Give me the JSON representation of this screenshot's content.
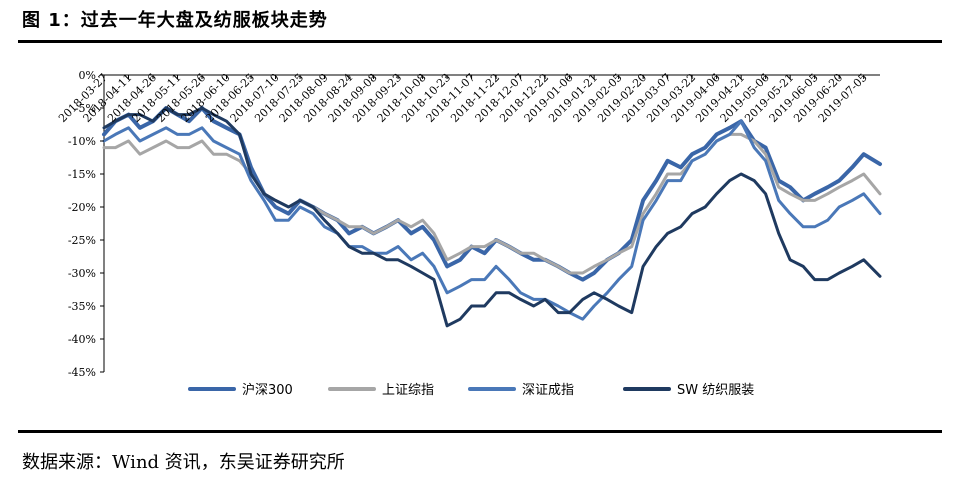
{
  "figure_title": "图 1：过去一年大盘及纺服板块走势",
  "source_note": "数据来源：Wind 资讯，东吴证券研究所",
  "chart_data": {
    "type": "line",
    "title": "",
    "xlabel": "",
    "ylabel": "",
    "y_tick_labels": [
      "0%",
      "-5%",
      "-10%",
      "-15%",
      "-20%",
      "-25%",
      "-30%",
      "-35%",
      "-40%",
      "-45%"
    ],
    "ylim": [
      -45,
      0
    ],
    "x_tick_labels": [
      "2018-03-27",
      "2018-04-11",
      "2018-04-26",
      "2018-05-11",
      "2018-05-26",
      "2018-06-10",
      "2018-06-25",
      "2018-07-10",
      "2018-07-25",
      "2018-08-09",
      "2018-08-24",
      "2018-09-08",
      "2018-09-23",
      "2018-10-08",
      "2018-10-23",
      "2018-11-07",
      "2018-11-22",
      "2018-12-07",
      "2018-12-22",
      "2019-01-06",
      "2019-01-21",
      "2019-02-05",
      "2019-02-20",
      "2019-03-07",
      "2019-03-22",
      "2019-04-06",
      "2019-04-21",
      "2019-05-06",
      "2019-05-21",
      "2019-06-05",
      "2019-06-20",
      "2019-07-05"
    ],
    "x_start": "2018-03-27",
    "x_end": "2019-07-15",
    "legend_position": "bottom",
    "grid": false,
    "series": [
      {
        "name": "沪深300",
        "color": "#3a66a8",
        "width": 4,
        "x": [
          "2018-03-27",
          "2018-04-03",
          "2018-04-11",
          "2018-04-18",
          "2018-04-26",
          "2018-05-04",
          "2018-05-11",
          "2018-05-18",
          "2018-05-26",
          "2018-06-02",
          "2018-06-10",
          "2018-06-18",
          "2018-06-25",
          "2018-07-03",
          "2018-07-10",
          "2018-07-18",
          "2018-07-25",
          "2018-08-02",
          "2018-08-09",
          "2018-08-17",
          "2018-08-24",
          "2018-09-01",
          "2018-09-08",
          "2018-09-16",
          "2018-09-23",
          "2018-10-01",
          "2018-10-08",
          "2018-10-15",
          "2018-10-23",
          "2018-10-31",
          "2018-11-07",
          "2018-11-15",
          "2018-11-22",
          "2018-11-30",
          "2018-12-07",
          "2018-12-15",
          "2018-12-22",
          "2018-12-30",
          "2019-01-06",
          "2019-01-14",
          "2019-01-21",
          "2019-01-29",
          "2019-02-05",
          "2019-02-13",
          "2019-02-20",
          "2019-02-28",
          "2019-03-07",
          "2019-03-15",
          "2019-03-22",
          "2019-03-30",
          "2019-04-06",
          "2019-04-14",
          "2019-04-21",
          "2019-04-29",
          "2019-05-06",
          "2019-05-14",
          "2019-05-21",
          "2019-05-29",
          "2019-06-05",
          "2019-06-13",
          "2019-06-20",
          "2019-06-28",
          "2019-07-05",
          "2019-07-15"
        ],
        "y": [
          -9,
          -7,
          -6,
          -8,
          -7,
          -5,
          -6,
          -7,
          -5,
          -7,
          -8,
          -9,
          -14,
          -18,
          -20,
          -21,
          -19,
          -20,
          -21,
          -22,
          -24,
          -23,
          -24,
          -23,
          -22,
          -24,
          -23,
          -25,
          -29,
          -28,
          -26,
          -27,
          -25,
          -26,
          -27,
          -28,
          -28,
          -29,
          -30,
          -31,
          -30,
          -28,
          -27,
          -25,
          -19,
          -16,
          -13,
          -14,
          -12,
          -11,
          -9,
          -8,
          -7,
          -10,
          -11,
          -16,
          -17,
          -19,
          -18,
          -17,
          -16,
          -14,
          -12,
          -13.5
        ]
      },
      {
        "name": "上证综指",
        "color": "#a6a6a6",
        "width": 3,
        "x": [
          "2018-03-27",
          "2018-04-03",
          "2018-04-11",
          "2018-04-18",
          "2018-04-26",
          "2018-05-04",
          "2018-05-11",
          "2018-05-18",
          "2018-05-26",
          "2018-06-02",
          "2018-06-10",
          "2018-06-18",
          "2018-06-25",
          "2018-07-03",
          "2018-07-10",
          "2018-07-18",
          "2018-07-25",
          "2018-08-02",
          "2018-08-09",
          "2018-08-17",
          "2018-08-24",
          "2018-09-01",
          "2018-09-08",
          "2018-09-16",
          "2018-09-23",
          "2018-10-01",
          "2018-10-08",
          "2018-10-15",
          "2018-10-23",
          "2018-10-31",
          "2018-11-07",
          "2018-11-15",
          "2018-11-22",
          "2018-11-30",
          "2018-12-07",
          "2018-12-15",
          "2018-12-22",
          "2018-12-30",
          "2019-01-06",
          "2019-01-14",
          "2019-01-21",
          "2019-01-29",
          "2019-02-05",
          "2019-02-13",
          "2019-02-20",
          "2019-02-28",
          "2019-03-07",
          "2019-03-15",
          "2019-03-22",
          "2019-03-30",
          "2019-04-06",
          "2019-04-14",
          "2019-04-21",
          "2019-04-29",
          "2019-05-06",
          "2019-05-14",
          "2019-05-21",
          "2019-05-29",
          "2019-06-05",
          "2019-06-13",
          "2019-06-20",
          "2019-06-28",
          "2019-07-05",
          "2019-07-15"
        ],
        "y": [
          -11,
          -11,
          -10,
          -12,
          -11,
          -10,
          -11,
          -11,
          -10,
          -12,
          -12,
          -13,
          -15,
          -18,
          -19,
          -20,
          -19,
          -20,
          -21,
          -22,
          -23,
          -23,
          -24,
          -23,
          -22,
          -23,
          -22,
          -24,
          -28,
          -27,
          -26,
          -26,
          -25,
          -26,
          -27,
          -27,
          -28,
          -29,
          -30,
          -30,
          -29,
          -28,
          -27,
          -26,
          -21,
          -18,
          -15,
          -15,
          -13,
          -12,
          -10,
          -9,
          -9,
          -10,
          -12,
          -17,
          -18,
          -19,
          -19,
          -18,
          -17,
          -16,
          -15,
          -18
        ]
      },
      {
        "name": "深证成指",
        "color": "#4a78b8",
        "width": 3,
        "x": [
          "2018-03-27",
          "2018-04-03",
          "2018-04-11",
          "2018-04-18",
          "2018-04-26",
          "2018-05-04",
          "2018-05-11",
          "2018-05-18",
          "2018-05-26",
          "2018-06-02",
          "2018-06-10",
          "2018-06-18",
          "2018-06-25",
          "2018-07-03",
          "2018-07-10",
          "2018-07-18",
          "2018-07-25",
          "2018-08-02",
          "2018-08-09",
          "2018-08-17",
          "2018-08-24",
          "2018-09-01",
          "2018-09-08",
          "2018-09-16",
          "2018-09-23",
          "2018-10-01",
          "2018-10-08",
          "2018-10-15",
          "2018-10-23",
          "2018-10-31",
          "2018-11-07",
          "2018-11-15",
          "2018-11-22",
          "2018-11-30",
          "2018-12-07",
          "2018-12-15",
          "2018-12-22",
          "2018-12-30",
          "2019-01-06",
          "2019-01-14",
          "2019-01-21",
          "2019-01-29",
          "2019-02-05",
          "2019-02-13",
          "2019-02-20",
          "2019-02-28",
          "2019-03-07",
          "2019-03-15",
          "2019-03-22",
          "2019-03-30",
          "2019-04-06",
          "2019-04-14",
          "2019-04-21",
          "2019-04-29",
          "2019-05-06",
          "2019-05-14",
          "2019-05-21",
          "2019-05-29",
          "2019-06-05",
          "2019-06-13",
          "2019-06-20",
          "2019-06-28",
          "2019-07-05",
          "2019-07-15"
        ],
        "y": [
          -10,
          -9,
          -8,
          -10,
          -9,
          -8,
          -9,
          -9,
          -8,
          -10,
          -11,
          -12,
          -16,
          -19,
          -22,
          -22,
          -20,
          -21,
          -23,
          -24,
          -26,
          -26,
          -27,
          -27,
          -26,
          -28,
          -27,
          -29,
          -33,
          -32,
          -31,
          -31,
          -29,
          -31,
          -33,
          -34,
          -34,
          -35,
          -36,
          -37,
          -35,
          -33,
          -31,
          -29,
          -22,
          -19,
          -16,
          -16,
          -13,
          -12,
          -10,
          -9,
          -7,
          -11,
          -13,
          -19,
          -21,
          -23,
          -23,
          -22,
          -20,
          -19,
          -18,
          -21
        ]
      },
      {
        "name": "SW 纺织服装",
        "color": "#1f3a60",
        "width": 3,
        "x": [
          "2018-03-27",
          "2018-04-03",
          "2018-04-11",
          "2018-04-18",
          "2018-04-26",
          "2018-05-04",
          "2018-05-11",
          "2018-05-18",
          "2018-05-26",
          "2018-06-02",
          "2018-06-10",
          "2018-06-18",
          "2018-06-25",
          "2018-07-03",
          "2018-07-10",
          "2018-07-18",
          "2018-07-25",
          "2018-08-02",
          "2018-08-09",
          "2018-08-17",
          "2018-08-24",
          "2018-09-01",
          "2018-09-08",
          "2018-09-16",
          "2018-09-23",
          "2018-10-01",
          "2018-10-08",
          "2018-10-15",
          "2018-10-23",
          "2018-10-31",
          "2018-11-07",
          "2018-11-15",
          "2018-11-22",
          "2018-11-30",
          "2018-12-07",
          "2018-12-15",
          "2018-12-22",
          "2018-12-30",
          "2019-01-06",
          "2019-01-14",
          "2019-01-21",
          "2019-01-29",
          "2019-02-05",
          "2019-02-13",
          "2019-02-20",
          "2019-02-28",
          "2019-03-07",
          "2019-03-15",
          "2019-03-22",
          "2019-03-30",
          "2019-04-06",
          "2019-04-14",
          "2019-04-21",
          "2019-04-29",
          "2019-05-06",
          "2019-05-14",
          "2019-05-21",
          "2019-05-29",
          "2019-06-05",
          "2019-06-13",
          "2019-06-20",
          "2019-06-28",
          "2019-07-05",
          "2019-07-15"
        ],
        "y": [
          -8,
          -7,
          -6,
          -6,
          -7,
          -5,
          -6,
          -6,
          -5,
          -6,
          -7,
          -9,
          -15,
          -18,
          -19,
          -20,
          -19,
          -20,
          -22,
          -24,
          -26,
          -27,
          -27,
          -28,
          -28,
          -29,
          -30,
          -31,
          -38,
          -37,
          -35,
          -35,
          -33,
          -33,
          -34,
          -35,
          -34,
          -36,
          -36,
          -34,
          -33,
          -34,
          -35,
          -36,
          -29,
          -26,
          -24,
          -23,
          -21,
          -20,
          -18,
          -16,
          -15,
          -16,
          -18,
          -24,
          -28,
          -29,
          -31,
          -31,
          -30,
          -29,
          -28,
          -30.5
        ]
      }
    ]
  }
}
